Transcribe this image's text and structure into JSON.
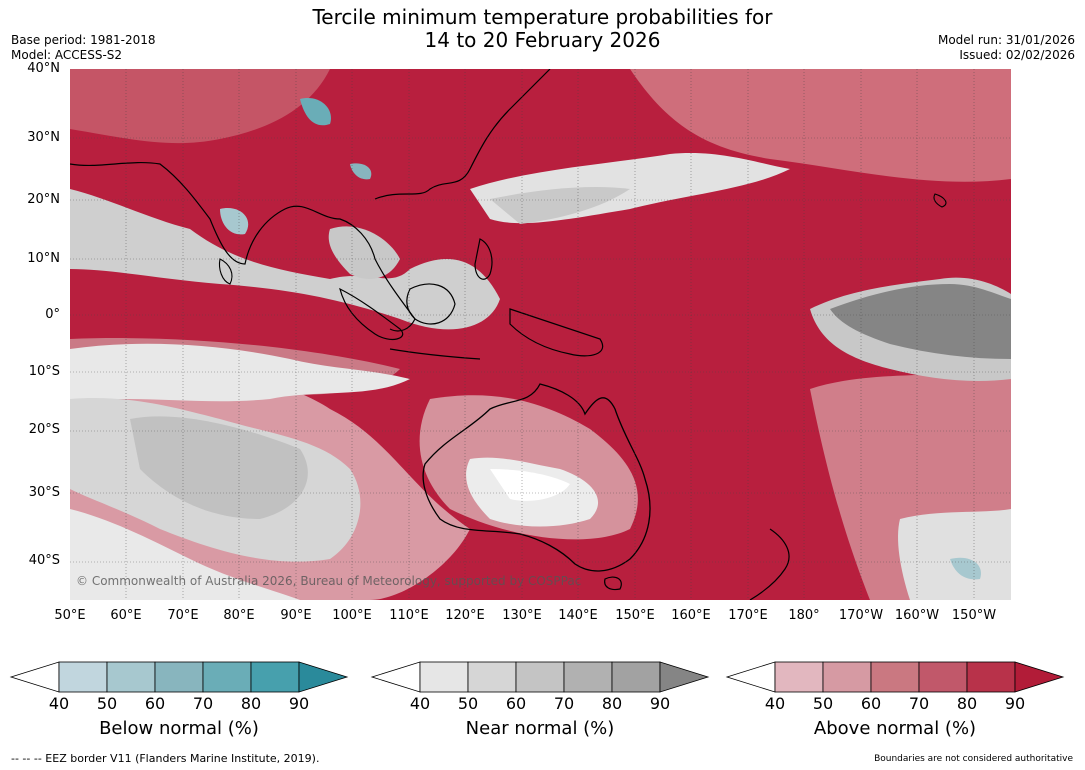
{
  "title_line1": "Tercile minimum temperature probabilities for",
  "title_line2": "14 to 20 February 2026",
  "meta_left": [
    "Base period: 1981-2018",
    "Model: ACCESS-S2"
  ],
  "meta_right": [
    "Model run: 31/01/2026",
    "Issued: 02/02/2026"
  ],
  "lat_labels": [
    "40°N",
    "30°N",
    "20°N",
    "10°N",
    "0°",
    "10°S",
    "20°S",
    "30°S",
    "40°S"
  ],
  "lon_labels": [
    "50°E",
    "60°E",
    "70°E",
    "80°E",
    "90°E",
    "100°E",
    "110°E",
    "120°E",
    "130°E",
    "140°E",
    "150°E",
    "160°E",
    "170°E",
    "180°",
    "170°W",
    "160°W",
    "150°W"
  ],
  "copyright": "© Commonwealth of Australia 2026, Bureau of Meteorology, supported by COSPPac",
  "colorbars": [
    {
      "title": "Below normal (%)",
      "ticks": [
        "40",
        "50",
        "60",
        "70",
        "80",
        "90"
      ],
      "colors": [
        "#ffffff",
        "#c1d6de",
        "#a7c8cf",
        "#88b5be",
        "#6aadb7",
        "#47a0ad",
        "#2a8a9b"
      ]
    },
    {
      "title": "Near normal (%)",
      "ticks": [
        "40",
        "50",
        "60",
        "70",
        "80",
        "90"
      ],
      "colors": [
        "#ffffff",
        "#e6e6e6",
        "#d6d6d6",
        "#c4c4c4",
        "#b1b1b1",
        "#a2a2a2",
        "#858585"
      ]
    },
    {
      "title": "Above normal (%)",
      "ticks": [
        "40",
        "50",
        "60",
        "70",
        "80",
        "90"
      ],
      "colors": [
        "#ffffff",
        "#e2b7bf",
        "#d69aa3",
        "#ca7881",
        "#c1586a",
        "#b8324a",
        "#b21c38"
      ]
    }
  ],
  "footer_left": "--  --  -- EEZ border V11 (Flanders Marine Institute, 2019).",
  "footer_right": "Boundaries are not considered authoritative"
}
